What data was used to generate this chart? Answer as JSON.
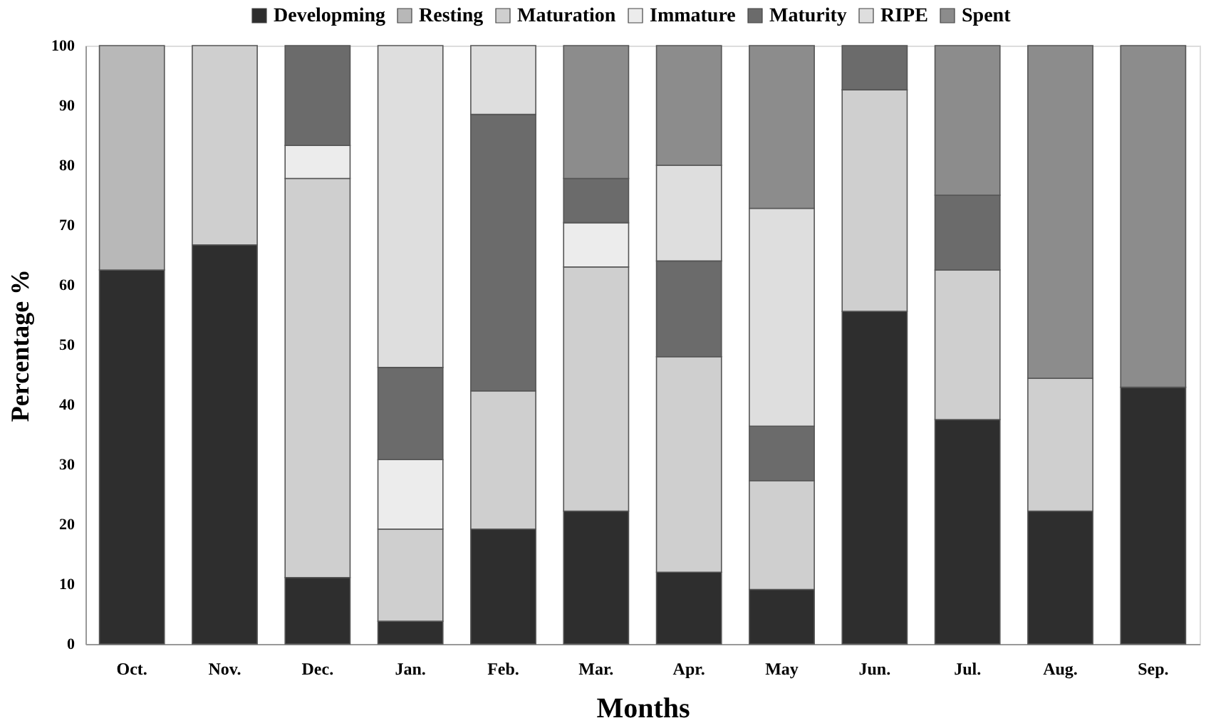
{
  "chart_data": {
    "type": "bar",
    "stacked": true,
    "xlabel": "Months",
    "ylabel": "Percentage %",
    "categories": [
      "Oct.",
      "Nov.",
      "Dec.",
      "Jan.",
      "Feb.",
      "Mar.",
      "Apr.",
      "May",
      "Jun.",
      "Jul.",
      "Aug.",
      "Sep."
    ],
    "series": [
      {
        "name": "Developming",
        "color": "#2e2e2e",
        "values": [
          62.5,
          66.7,
          11.1,
          3.8,
          19.2,
          22.2,
          12.0,
          9.1,
          55.6,
          37.5,
          22.2,
          42.9
        ]
      },
      {
        "name": "Resting",
        "color": "#b8b8b8",
        "values": [
          37.5,
          null,
          null,
          null,
          null,
          null,
          null,
          null,
          null,
          null,
          null,
          null
        ]
      },
      {
        "name": "Maturation",
        "color": "#cfcfcf",
        "values": [
          null,
          33.3,
          66.7,
          15.4,
          23.1,
          40.8,
          36.0,
          18.2,
          37.0,
          25.0,
          22.2,
          null
        ]
      },
      {
        "name": "Immature",
        "color": "#ececec",
        "values": [
          null,
          null,
          5.5,
          11.6,
          null,
          7.4,
          null,
          null,
          null,
          null,
          null,
          null
        ]
      },
      {
        "name": "Maturity",
        "color": "#6b6b6b",
        "values": [
          null,
          null,
          16.7,
          15.4,
          46.2,
          7.4,
          16.0,
          9.1,
          7.4,
          12.5,
          null,
          null
        ]
      },
      {
        "name": "RIPE",
        "color": "#dedede",
        "values": [
          null,
          null,
          null,
          53.8,
          11.5,
          null,
          16.0,
          36.4,
          null,
          null,
          null,
          null
        ]
      },
      {
        "name": "Spent",
        "color": "#8c8c8c",
        "values": [
          null,
          null,
          null,
          null,
          null,
          22.2,
          20.0,
          27.2,
          null,
          25.0,
          55.6,
          57.1
        ]
      }
    ],
    "ylim": [
      0,
      100
    ],
    "yticks": [
      0,
      10,
      20,
      30,
      40,
      50,
      60,
      70,
      80,
      90,
      100
    ],
    "grid": false,
    "legend": "top"
  }
}
